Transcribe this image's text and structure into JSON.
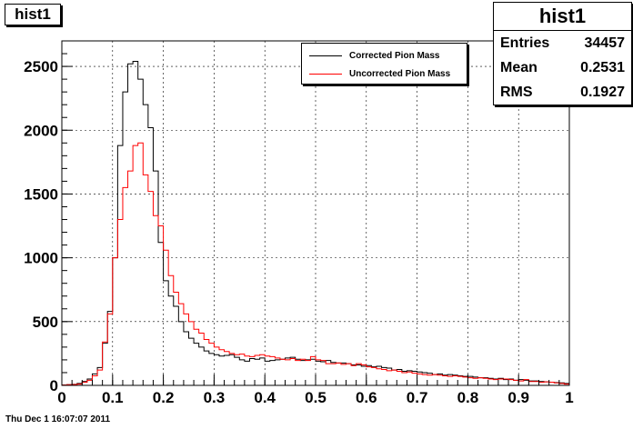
{
  "chart_data": {
    "type": "line",
    "title": "hist1",
    "xlabel": "",
    "ylabel": "",
    "xlim": [
      0,
      1
    ],
    "ylim": [
      0,
      2700
    ],
    "grid": true,
    "legend_position": "top-right",
    "x_ticks": [
      "0",
      "0.1",
      "0.2",
      "0.3",
      "0.4",
      "0.5",
      "0.6",
      "0.7",
      "0.8",
      "0.9",
      "1"
    ],
    "y_ticks": [
      "0",
      "500",
      "1000",
      "1500",
      "2000",
      "2500"
    ],
    "bin_width": 0.01,
    "series": [
      {
        "name": "Corrected Pion Mass",
        "color": "#000000",
        "values": [
          3,
          5,
          8,
          15,
          30,
          50,
          90,
          140,
          330,
          580,
          1000,
          1880,
          2300,
          2520,
          2540,
          2400,
          2200,
          2020,
          1680,
          1120,
          820,
          700,
          620,
          500,
          420,
          370,
          330,
          300,
          270,
          250,
          240,
          230,
          235,
          240,
          220,
          200,
          190,
          210,
          205,
          215,
          190,
          195,
          200,
          205,
          215,
          220,
          205,
          195,
          200,
          205,
          190,
          185,
          195,
          180,
          175,
          175,
          170,
          160,
          160,
          150,
          155,
          145,
          150,
          140,
          135,
          120,
          125,
          110,
          115,
          110,
          105,
          100,
          95,
          85,
          90,
          80,
          85,
          80,
          75,
          70,
          70,
          65,
          60,
          60,
          55,
          50,
          55,
          45,
          50,
          40,
          45,
          40,
          35,
          35,
          30,
          28,
          25,
          22,
          20,
          15
        ]
      },
      {
        "name": "Uncorrected Pion Mass",
        "color": "#ff0000",
        "values": [
          3,
          5,
          6,
          10,
          25,
          40,
          75,
          120,
          340,
          560,
          1000,
          1300,
          1550,
          1680,
          1880,
          1900,
          1650,
          1520,
          1330,
          1250,
          1060,
          860,
          730,
          640,
          560,
          500,
          440,
          410,
          360,
          330,
          300,
          280,
          265,
          250,
          240,
          245,
          230,
          225,
          235,
          240,
          230,
          225,
          215,
          205,
          200,
          210,
          195,
          205,
          195,
          225,
          200,
          195,
          170,
          170,
          175,
          165,
          170,
          155,
          170,
          160,
          145,
          140,
          130,
          125,
          115,
          120,
          110,
          100,
          105,
          95,
          90,
          85,
          80,
          85,
          80,
          75,
          70,
          75,
          70,
          65,
          60,
          55,
          60,
          55,
          50,
          45,
          50,
          50,
          45,
          40,
          35,
          45,
          30,
          30,
          25,
          28,
          25,
          20,
          15,
          10
        ]
      }
    ]
  },
  "title_box": {
    "label": "hist1"
  },
  "stats": {
    "title": "hist1",
    "rows": [
      {
        "label": "Entries",
        "value": "34457"
      },
      {
        "label": "Mean",
        "value": "0.2531"
      },
      {
        "label": "RMS",
        "value": "0.1927"
      }
    ]
  },
  "legend": {
    "entries": [
      "Corrected Pion Mass",
      "Uncorrected Pion Mass"
    ],
    "colors": [
      "#000000",
      "#ff0000"
    ]
  },
  "footer": {
    "timestamp": "Thu Dec  1 16:07:07 2011"
  }
}
